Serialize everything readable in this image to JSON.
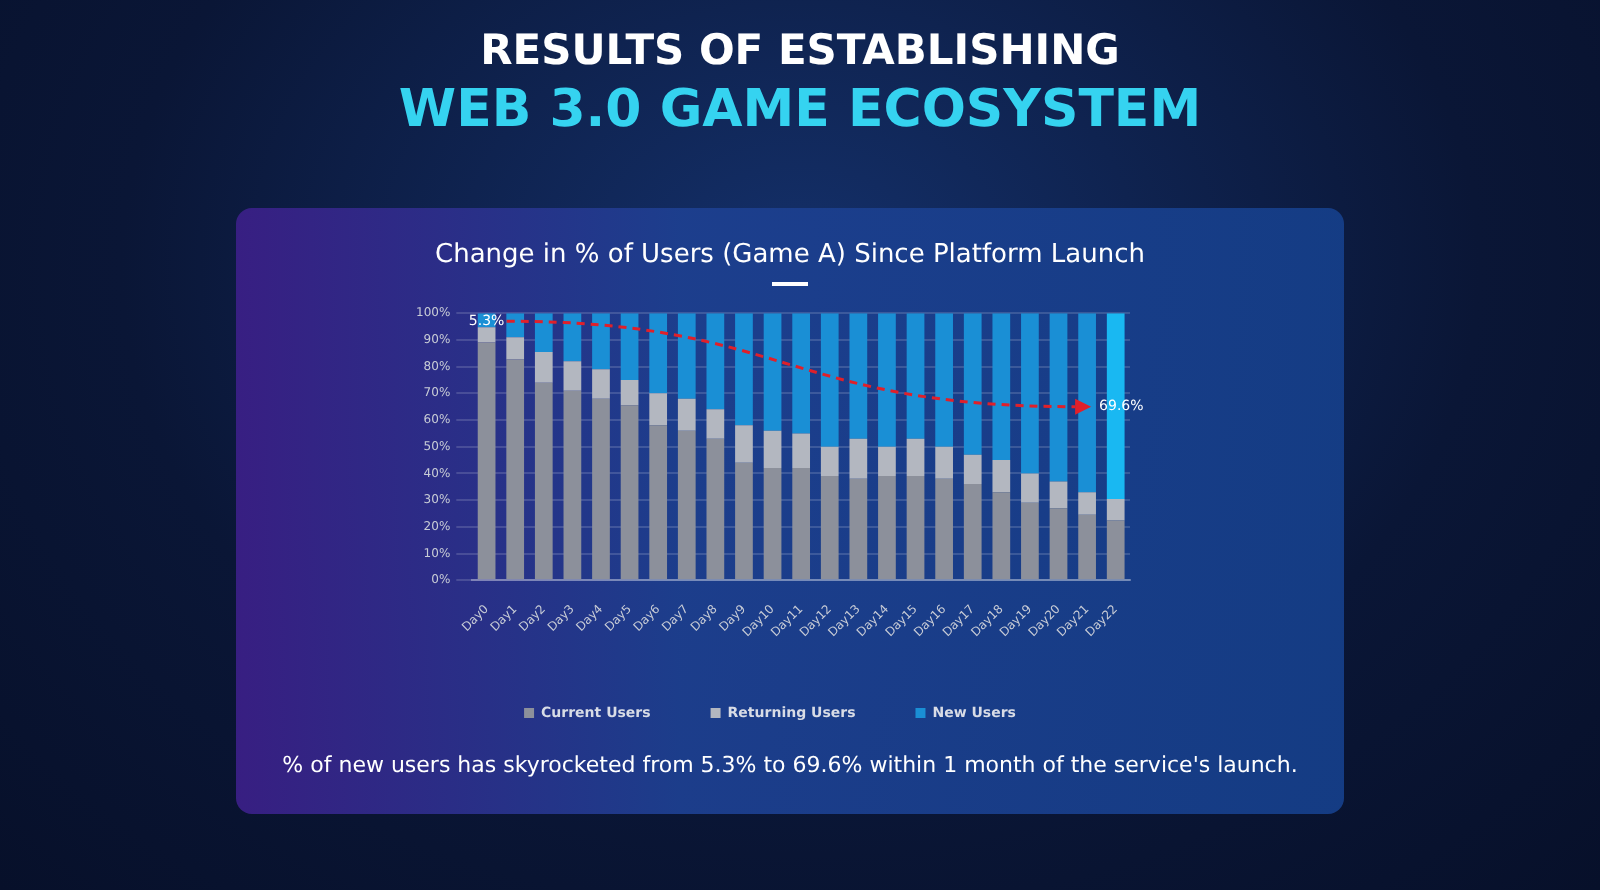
{
  "chart_data": {
    "type": "bar",
    "title": "RESULTS OF ESTABLISHING WEB 3.0 GAME ECOSYSTEM",
    "subtitle": "Change in % of Users (Game A) Since Platform Launch",
    "categories": [
      "Day0",
      "Day1",
      "Day2",
      "Day3",
      "Day4",
      "Day5",
      "Day6",
      "Day7",
      "Day8",
      "Day9",
      "Day10",
      "Day11",
      "Day12",
      "Day13",
      "Day14",
      "Day15",
      "Day16",
      "Day17",
      "Day18",
      "Day19",
      "Day20",
      "Day21",
      "Day22"
    ],
    "stacked": true,
    "series": [
      {
        "name": "Current Users",
        "color": "#8c909b",
        "values": [
          89,
          82.7,
          74,
          71,
          68,
          65.5,
          58,
          56,
          53,
          44,
          42,
          42,
          39,
          38,
          39,
          39,
          38,
          36,
          33,
          29,
          27,
          24.5,
          22.4
        ]
      },
      {
        "name": "Returning Users",
        "color": "#b3b7c0",
        "values": [
          5.7,
          8.3,
          11.5,
          11,
          11,
          9.5,
          12,
          12,
          11,
          14,
          14,
          13,
          11,
          15,
          11,
          14,
          12,
          11,
          12,
          11,
          10,
          8.5,
          8
        ]
      },
      {
        "name": "New Users",
        "color": "#1a8fd5",
        "colors": [
          "#1a8fd5",
          "#1a8fd5",
          "#1a8fd5",
          "#1a8fd5",
          "#1a8fd5",
          "#1a8fd5",
          "#1a8fd5",
          "#1a8fd5",
          "#1a8fd5",
          "#1a8fd5",
          "#1a8fd5",
          "#1a8fd5",
          "#1a8fd5",
          "#1a8fd5",
          "#1a8fd5",
          "#1a8fd5",
          "#1a8fd5",
          "#1a8fd5",
          "#1a8fd5",
          "#1a8fd5",
          "#1a8fd5",
          "#1a8fd5",
          "#19b8f2"
        ],
        "values": [
          5.3,
          9,
          14.5,
          18,
          21,
          25,
          30,
          32,
          36,
          42,
          44,
          45,
          50,
          47,
          50,
          47,
          50,
          53,
          55,
          60,
          63,
          67,
          69.6
        ]
      }
    ],
    "ylim": [
      0,
      100
    ],
    "yticks": [
      {
        "value": 0,
        "label": "0%"
      },
      {
        "value": 10,
        "label": "10%"
      },
      {
        "value": 20,
        "label": "20%"
      },
      {
        "value": 30,
        "label": "30%"
      },
      {
        "value": 40,
        "label": "40%"
      },
      {
        "value": 50,
        "label": "50%"
      },
      {
        "value": 60,
        "label": "60%"
      },
      {
        "value": 70,
        "label": "70%"
      },
      {
        "value": 80,
        "label": "80%"
      },
      {
        "value": 90,
        "label": "90%"
      },
      {
        "value": 100,
        "label": "100%"
      }
    ],
    "grid": "y",
    "legend": "bottom",
    "annotations": [
      {
        "text": "5.3%",
        "x": "Day0",
        "y": 97
      },
      {
        "text": "69.6%",
        "x": "Day21",
        "y": 65
      },
      "% of new users has skyrocketed from 5.3% to 69.6% within 1 month of the service's launch."
    ]
  }
}
